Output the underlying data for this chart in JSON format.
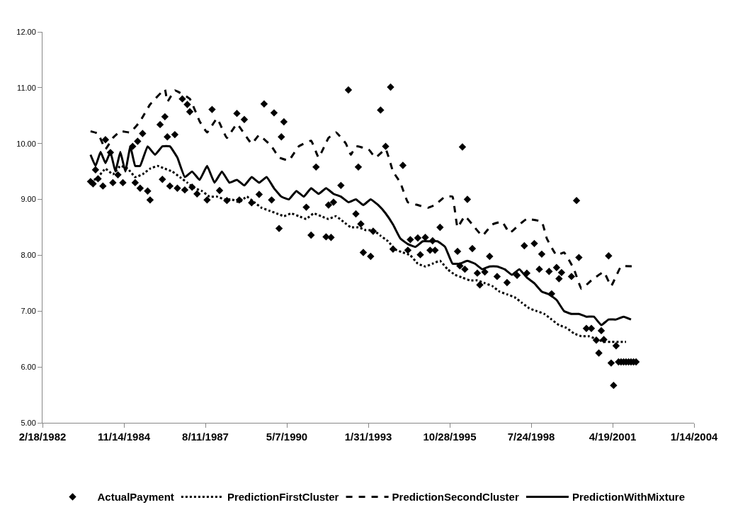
{
  "chart_data": {
    "type": "line",
    "xlim": [
      "1982-02-18",
      "2004-01-14"
    ],
    "xticks": [
      {
        "value": "1982-02-18",
        "label": "2/18/1982"
      },
      {
        "value": "1984-11-14",
        "label": "11/14/1984"
      },
      {
        "value": "1987-08-11",
        "label": "8/11/1987"
      },
      {
        "value": "1990-05-07",
        "label": "5/7/1990"
      },
      {
        "value": "1993-01-31",
        "label": "1/31/1993"
      },
      {
        "value": "1995-10-28",
        "label": "10/28/1995"
      },
      {
        "value": "1998-07-24",
        "label": "7/24/1998"
      },
      {
        "value": "2001-04-19",
        "label": "4/19/2001"
      },
      {
        "value": "2004-01-14",
        "label": "1/14/2004"
      }
    ],
    "ylim": [
      5,
      12
    ],
    "yticks": [
      {
        "value": 5,
        "label": "5.00"
      },
      {
        "value": 6,
        "label": "6.00"
      },
      {
        "value": 7,
        "label": "7.00"
      },
      {
        "value": 8,
        "label": "8.00"
      },
      {
        "value": 9,
        "label": "9.00"
      },
      {
        "value": 10,
        "label": "10.00"
      },
      {
        "value": 11,
        "label": "11.00"
      },
      {
        "value": 12,
        "label": "12.00"
      }
    ],
    "legend": "bottom",
    "series": [
      {
        "name": "ActualPayment",
        "type": "scatter",
        "marker": "diamond",
        "color": "#000000",
        "x": [
          "1983-10",
          "1983-11",
          "1984-01",
          "1983-12",
          "1984-03",
          "1984-04",
          "1984-07",
          "1984-06",
          "1984-09",
          "1984-11",
          "1985-03",
          "1985-04",
          "1985-05",
          "1985-06",
          "1985-07",
          "1985-10",
          "1985-09",
          "1986-02",
          "1986-03",
          "1986-04",
          "1986-05",
          "1986-06",
          "1986-08",
          "1986-09",
          "1986-11",
          "1986-12",
          "1987-01",
          "1987-02",
          "1987-03",
          "1987-05",
          "1987-09",
          "1987-11",
          "1988-02",
          "1988-05",
          "1988-09",
          "1988-10",
          "1988-12",
          "1989-03",
          "1989-06",
          "1989-08",
          "1989-12",
          "1989-11",
          "1990-02",
          "1990-03",
          "1990-04",
          "1991-01",
          "1991-03",
          "1991-05",
          "1991-09",
          "1991-11",
          "1991-10",
          "1991-12",
          "1992-03",
          "1992-06",
          "1992-09",
          "1992-10",
          "1992-11",
          "1992-12",
          "1993-03",
          "1993-04",
          "1993-07",
          "1993-09",
          "1993-11",
          "1993-12",
          "1994-04",
          "1994-06",
          "1994-07",
          "1994-10",
          "1994-11",
          "1995-01",
          "1995-03",
          "1995-04",
          "1995-05",
          "1995-07",
          "1996-02",
          "1996-03",
          "1996-04",
          "1996-05",
          "1996-06",
          "1996-08",
          "1996-10",
          "1996-11",
          "1997-01",
          "1997-03",
          "1997-06",
          "1997-10",
          "1998-02",
          "1998-05",
          "1998-06",
          "1998-09",
          "1998-11",
          "1998-12",
          "1999-03",
          "1999-04",
          "1999-06",
          "1999-07",
          "1999-08",
          "1999-12",
          "2000-02",
          "2000-03",
          "2000-06",
          "2000-08",
          "2000-10",
          "2000-11",
          "2000-12",
          "2001-01",
          "2001-03",
          "2001-04",
          "2001-05",
          "2001-06",
          "2001-07",
          "2001-08",
          "2001-09",
          "2001-10",
          "2001-11",
          "2001-12",
          "2002-01",
          "2002-02"
        ],
        "values": [
          9.32,
          9.28,
          9.37,
          9.53,
          9.24,
          10.07,
          9.3,
          9.84,
          9.44,
          9.3,
          9.95,
          9.3,
          10.04,
          9.2,
          10.18,
          8.99,
          9.15,
          10.34,
          9.36,
          10.48,
          10.12,
          9.24,
          10.16,
          9.2,
          10.8,
          9.17,
          10.7,
          10.57,
          9.22,
          9.1,
          8.99,
          10.61,
          9.16,
          8.98,
          10.54,
          8.99,
          10.43,
          8.94,
          9.09,
          10.71,
          10.55,
          8.99,
          8.48,
          10.12,
          10.39,
          8.86,
          8.36,
          9.58,
          8.33,
          8.32,
          8.9,
          8.95,
          9.25,
          10.96,
          8.74,
          9.58,
          8.56,
          8.05,
          7.98,
          8.43,
          10.6,
          9.95,
          11.01,
          8.11,
          9.61,
          8.09,
          8.28,
          8.31,
          8.01,
          8.32,
          8.09,
          8.26,
          8.09,
          8.5,
          8.07,
          7.81,
          9.94,
          7.75,
          9.0,
          8.12,
          7.68,
          7.47,
          7.7,
          7.98,
          7.62,
          7.51,
          7.64,
          8.17,
          7.68,
          8.21,
          7.75,
          8.02,
          7.71,
          7.31,
          7.78,
          7.58,
          7.69,
          7.62,
          8.98,
          7.96,
          6.69,
          6.69,
          6.48,
          6.25,
          6.65,
          6.49,
          7.99,
          6.07,
          5.67,
          6.38,
          6.09,
          6.09,
          6.09,
          6.09,
          6.09,
          6.09,
          6.09,
          6.09
        ]
      },
      {
        "name": "PredictionFirstCluster",
        "line_style": "dotted",
        "color": "#000000",
        "x": [
          "1983-10",
          "1984-01",
          "1984-04",
          "1984-07",
          "1984-10",
          "1985-01",
          "1985-04",
          "1985-07",
          "1985-10",
          "1986-01",
          "1986-04",
          "1986-07",
          "1986-10",
          "1987-01",
          "1987-04",
          "1987-07",
          "1987-10",
          "1988-01",
          "1988-04",
          "1988-07",
          "1988-10",
          "1989-01",
          "1989-04",
          "1989-07",
          "1989-10",
          "1990-01",
          "1990-04",
          "1990-07",
          "1990-10",
          "1991-01",
          "1991-04",
          "1991-07",
          "1991-10",
          "1992-01",
          "1992-04",
          "1992-07",
          "1992-10",
          "1993-01",
          "1993-04",
          "1993-07",
          "1993-10",
          "1994-01",
          "1994-04",
          "1994-07",
          "1994-10",
          "1995-01",
          "1995-04",
          "1995-07",
          "1995-10",
          "1996-01",
          "1996-04",
          "1996-07",
          "1996-10",
          "1997-01",
          "1997-04",
          "1997-07",
          "1997-10",
          "1998-01",
          "1998-04",
          "1998-07",
          "1998-10",
          "1999-01",
          "1999-04",
          "1999-07",
          "1999-10",
          "2000-01",
          "2000-04",
          "2000-07",
          "2000-10",
          "2001-01",
          "2001-04",
          "2001-07",
          "2001-10"
        ],
        "values": [
          9.3,
          9.4,
          9.55,
          9.45,
          9.6,
          9.55,
          9.4,
          9.45,
          9.55,
          9.6,
          9.55,
          9.5,
          9.4,
          9.3,
          9.2,
          9.15,
          9.05,
          9.05,
          9.0,
          9.0,
          8.95,
          9.05,
          8.95,
          8.85,
          8.8,
          8.75,
          8.7,
          8.75,
          8.7,
          8.65,
          8.75,
          8.7,
          8.65,
          8.7,
          8.6,
          8.5,
          8.5,
          8.45,
          8.45,
          8.35,
          8.25,
          8.1,
          8.05,
          8.0,
          7.85,
          7.8,
          7.85,
          7.9,
          7.75,
          7.65,
          7.6,
          7.55,
          7.55,
          7.5,
          7.45,
          7.35,
          7.3,
          7.25,
          7.15,
          7.05,
          7.0,
          6.95,
          6.85,
          6.75,
          6.7,
          6.6,
          6.55,
          6.55,
          6.5,
          6.45,
          6.45,
          6.45,
          6.45
        ]
      },
      {
        "name": "PredictionSecondCluster",
        "line_style": "dashed",
        "color": "#000000",
        "x": [
          "1983-10",
          "1984-01",
          "1984-04",
          "1984-07",
          "1984-10",
          "1985-02",
          "1985-06",
          "1985-10",
          "1986-04",
          "1986-05",
          "1986-08",
          "1987-02",
          "1987-06",
          "1987-09",
          "1988-01",
          "1988-05",
          "1988-09",
          "1989-03",
          "1989-06",
          "1989-11",
          "1990-02",
          "1990-06",
          "1990-10",
          "1991-03",
          "1991-06",
          "1991-10",
          "1992-01",
          "1992-05",
          "1992-07",
          "1992-09",
          "1993-02",
          "1993-05",
          "1993-09",
          "1993-12",
          "1994-03",
          "1994-06",
          "1994-10",
          "1995-02",
          "1995-05",
          "1995-09",
          "1995-12",
          "1996-02",
          "1996-05",
          "1996-08",
          "1996-12",
          "1997-04",
          "1997-08",
          "1997-11",
          "1998-03",
          "1998-06",
          "1998-12",
          "1999-02",
          "1999-06",
          "1999-09",
          "2000-01",
          "2000-04",
          "2000-08",
          "2001-01",
          "2001-04",
          "2001-08",
          "2002-01"
        ],
        "values": [
          10.22,
          10.18,
          9.9,
          10.1,
          10.22,
          10.2,
          10.4,
          10.7,
          10.97,
          10.75,
          10.95,
          10.8,
          10.4,
          10.2,
          10.45,
          10.1,
          10.35,
          10.0,
          10.15,
          9.95,
          9.75,
          9.7,
          9.95,
          10.05,
          9.75,
          10.1,
          10.2,
          10.0,
          9.8,
          9.95,
          9.9,
          9.75,
          9.9,
          9.5,
          9.3,
          8.95,
          8.9,
          8.85,
          8.9,
          9.05,
          9.05,
          8.5,
          8.7,
          8.55,
          8.35,
          8.55,
          8.6,
          8.4,
          8.55,
          8.65,
          8.6,
          8.3,
          8.0,
          8.05,
          7.75,
          7.4,
          7.55,
          7.7,
          7.45,
          7.8,
          7.8
        ]
      },
      {
        "name": "PredictionWithMixture",
        "line_style": "solid",
        "color": "#000000",
        "x": [
          "1983-10",
          "1983-12",
          "1984-02",
          "1984-04",
          "1984-06",
          "1984-08",
          "1984-10",
          "1984-12",
          "1985-02",
          "1985-04",
          "1985-06",
          "1985-09",
          "1985-12",
          "1986-03",
          "1986-06",
          "1986-09",
          "1986-12",
          "1987-03",
          "1987-06",
          "1987-09",
          "1987-12",
          "1988-03",
          "1988-06",
          "1988-09",
          "1988-12",
          "1989-03",
          "1989-06",
          "1989-09",
          "1989-12",
          "1990-03",
          "1990-06",
          "1990-09",
          "1990-12",
          "1991-03",
          "1991-06",
          "1991-09",
          "1991-12",
          "1992-03",
          "1992-06",
          "1992-09",
          "1992-12",
          "1993-03",
          "1993-06",
          "1993-09",
          "1993-12",
          "1994-03",
          "1994-06",
          "1994-09",
          "1994-12",
          "1995-03",
          "1995-06",
          "1995-09",
          "1995-12",
          "1996-03",
          "1996-06",
          "1996-09",
          "1996-12",
          "1997-03",
          "1997-06",
          "1997-09",
          "1997-12",
          "1998-03",
          "1998-06",
          "1998-09",
          "1998-12",
          "1999-03",
          "1999-06",
          "1999-09",
          "1999-12",
          "2000-03",
          "2000-06",
          "2000-09",
          "2000-12",
          "2001-03",
          "2001-06",
          "2001-09",
          "2001-12"
        ],
        "values": [
          9.8,
          9.6,
          9.85,
          9.65,
          9.85,
          9.5,
          9.85,
          9.5,
          9.95,
          9.6,
          9.6,
          9.95,
          9.8,
          9.95,
          9.95,
          9.75,
          9.4,
          9.5,
          9.35,
          9.6,
          9.3,
          9.5,
          9.3,
          9.35,
          9.25,
          9.4,
          9.3,
          9.4,
          9.2,
          9.05,
          9.0,
          9.15,
          9.05,
          9.2,
          9.1,
          9.2,
          9.1,
          9.05,
          8.95,
          9.0,
          8.9,
          9.0,
          8.9,
          8.75,
          8.55,
          8.3,
          8.2,
          8.15,
          8.25,
          8.25,
          8.25,
          8.15,
          7.85,
          7.85,
          7.9,
          7.85,
          7.75,
          7.8,
          7.8,
          7.75,
          7.65,
          7.75,
          7.6,
          7.5,
          7.35,
          7.3,
          7.2,
          7.0,
          6.95,
          6.95,
          6.9,
          6.9,
          6.75,
          6.85,
          6.85,
          6.9,
          6.85
        ]
      }
    ]
  }
}
